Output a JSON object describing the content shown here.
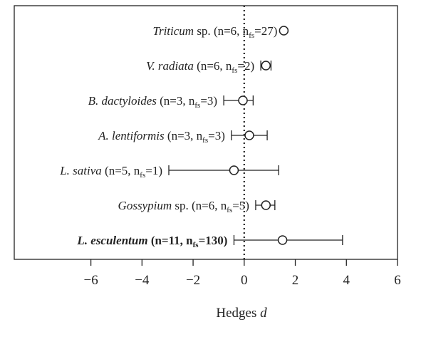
{
  "chart_data": {
    "type": "forest",
    "xlabel_main": "Hedges",
    "xlabel_symbol": "d",
    "xlim": [
      -9,
      6
    ],
    "xticks": [
      -6,
      -4,
      -2,
      0,
      2,
      4,
      6
    ],
    "xtick_labels": [
      "−6",
      "−4",
      "−2",
      "0",
      "2",
      "4",
      "6"
    ],
    "zero_line": "dotted",
    "marker": "open-circle",
    "rows": [
      {
        "label": "Triticum",
        "suffix": " sp.",
        "italic": true,
        "bold": false,
        "n": 6,
        "nfs": 27,
        "mean": 1.55,
        "ci": [
          1.55,
          1.55
        ]
      },
      {
        "label": "V. radiata",
        "suffix": "",
        "italic": true,
        "bold": false,
        "n": 6,
        "nfs": 2,
        "mean": 0.85,
        "ci": [
          0.65,
          1.05
        ]
      },
      {
        "label": "B. dactyloides",
        "suffix": "",
        "italic": true,
        "bold": false,
        "n": 3,
        "nfs": 3,
        "mean": -0.05,
        "ci": [
          -0.8,
          0.35
        ]
      },
      {
        "label": "A. lentiformis",
        "suffix": "",
        "italic": true,
        "bold": false,
        "n": 3,
        "nfs": 3,
        "mean": 0.2,
        "ci": [
          -0.5,
          0.9
        ]
      },
      {
        "label": "L. sativa",
        "suffix": "",
        "italic": true,
        "bold": false,
        "n": 5,
        "nfs": 1,
        "mean": -0.4,
        "ci": [
          -2.95,
          1.35
        ]
      },
      {
        "label": "Gossypium",
        "suffix": " sp.",
        "italic": true,
        "bold": false,
        "n": 6,
        "nfs": 5,
        "mean": 0.85,
        "ci": [
          0.45,
          1.2
        ]
      },
      {
        "label": "L. esculentum",
        "suffix": "",
        "italic": true,
        "bold": true,
        "n": 11,
        "nfs": 130,
        "mean": 1.5,
        "ci": [
          -0.4,
          3.85
        ]
      }
    ]
  }
}
